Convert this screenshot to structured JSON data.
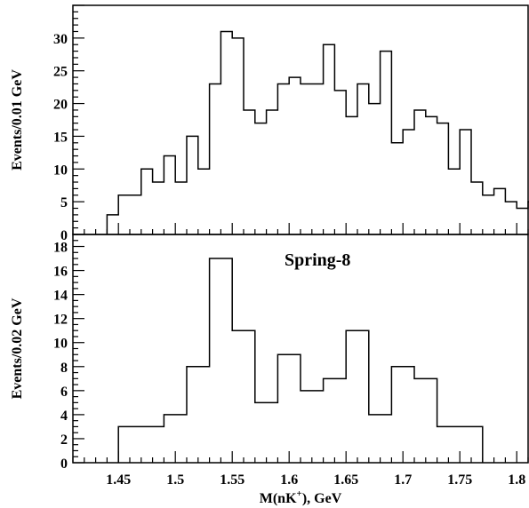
{
  "chart_data": [
    {
      "type": "histogram",
      "ylabel": "Events/0.01 GeV",
      "xlabel": "",
      "xlim": [
        1.41,
        1.81
      ],
      "ylim": [
        0,
        35
      ],
      "bin_width": 0.01,
      "x_edges_start": 1.44,
      "values": [
        3,
        6,
        6,
        10,
        8,
        12,
        8,
        15,
        10,
        23,
        31,
        30,
        19,
        17,
        19,
        23,
        24,
        23,
        23,
        29,
        22,
        18,
        23,
        20,
        28,
        14,
        16,
        19,
        18,
        17,
        10,
        16,
        8,
        6,
        7,
        5,
        4,
        5
      ],
      "yticks": [
        0,
        5,
        10,
        15,
        20,
        25,
        30
      ],
      "ytick_labels": [
        "0",
        "5",
        "10",
        "15",
        "20",
        "25",
        "30"
      ]
    },
    {
      "type": "histogram",
      "ylabel": "Events/0.02 GeV",
      "xlabel": "M(nK+), GeV",
      "annotation": "Spring-8",
      "xlim": [
        1.41,
        1.81
      ],
      "ylim": [
        0,
        19
      ],
      "bin_width": 0.02,
      "x_edges_start": 1.45,
      "values": [
        3,
        3,
        4,
        8,
        17,
        11,
        5,
        9,
        6,
        7,
        11,
        4,
        8,
        7,
        3,
        3
      ],
      "yticks": [
        0,
        2,
        4,
        6,
        8,
        10,
        12,
        14,
        16,
        18
      ],
      "ytick_labels": [
        "0",
        "2",
        "4",
        "6",
        "8",
        "10",
        "12",
        "14",
        "16",
        "18"
      ],
      "xticks": [
        1.45,
        1.5,
        1.55,
        1.6,
        1.65,
        1.7,
        1.75,
        1.8
      ],
      "xtick_labels": [
        "1.45",
        "1.5",
        "1.55",
        "1.6",
        "1.65",
        "1.7",
        "1.75",
        "1.8"
      ]
    }
  ],
  "axis_title": {
    "x_main": "M(nK",
    "x_sup": "+",
    "x_tail": "), GeV"
  }
}
